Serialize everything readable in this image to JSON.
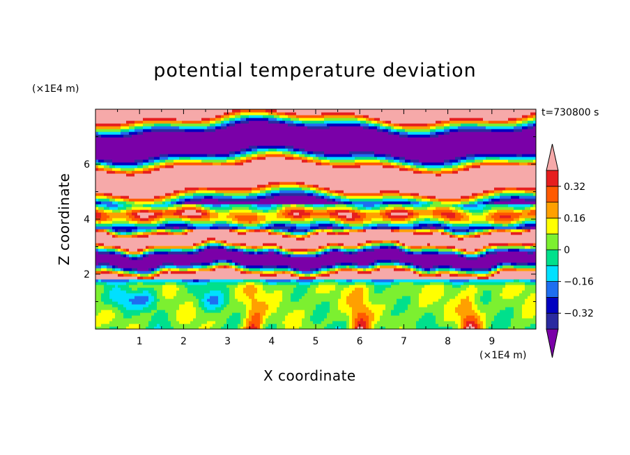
{
  "chart_data": {
    "type": "heatmap",
    "title": "potential temperature deviation",
    "xlabel": "X coordinate",
    "ylabel": "Z coordinate",
    "x_unit": "(×1E4 m)",
    "y_unit": "(×1E4 m)",
    "time_label": "t=730800 s",
    "xlim": [
      0,
      10
    ],
    "ylim": [
      0,
      8
    ],
    "x_ticks": [
      1,
      2,
      3,
      4,
      5,
      6,
      7,
      8,
      9
    ],
    "x_tick_labels": [
      "1",
      "2",
      "3",
      "4",
      "5",
      "6",
      "7",
      "8",
      "9"
    ],
    "y_ticks": [
      2,
      4,
      6
    ],
    "y_tick_labels": [
      "2",
      "4",
      "6"
    ],
    "colorbar": {
      "levels": [
        -0.4,
        -0.32,
        -0.24,
        -0.16,
        -0.08,
        0,
        0.08,
        0.16,
        0.24,
        0.32,
        0.4
      ],
      "tick_values": [
        -0.32,
        -0.16,
        0,
        0.16,
        0.32
      ],
      "tick_labels": [
        "−0.32",
        "−0.16",
        "0",
        "0.16",
        "0.32"
      ],
      "under_color": "#7a00a8",
      "over_color": "#f6a9a9",
      "band_colors": [
        "#2a2aa0",
        "#0000c0",
        "#1e6ef0",
        "#00e0ff",
        "#00e08c",
        "#7cf030",
        "#ffff00",
        "#ffa000",
        "#ff5a00",
        "#e61e1e"
      ]
    },
    "regions": [
      {
        "zmin": 0.0,
        "zmax": 1.8,
        "dominant": "weak positive and near-zero (green), warm plumes near x≈3.6, 6.0, 8.5"
      },
      {
        "zmin": 1.8,
        "zmax": 3.5,
        "dominant": "alternating strong negative (purple) and strong positive (pink) layers"
      },
      {
        "zmin": 3.5,
        "zmax": 4.5,
        "dominant": "mixed values, orange/red bands near z≈4.2"
      },
      {
        "zmin": 4.5,
        "zmax": 8.0,
        "dominant": "large layers of strong positive (pink) and strong negative (purple)"
      }
    ]
  }
}
